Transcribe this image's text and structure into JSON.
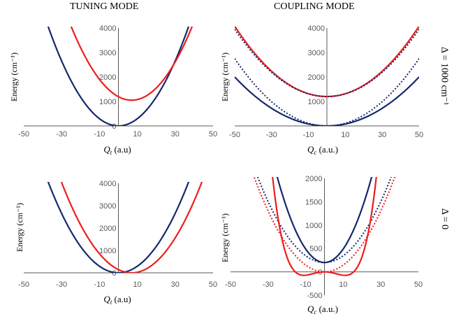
{
  "headers": {
    "tuning": "TUNING MODE",
    "coupling": "COUPLING MODE"
  },
  "side_labels": {
    "top": "Δ = 1000 cm⁻¹",
    "bottom": "Δ = 0"
  },
  "colors": {
    "navy": "#14286b",
    "red": "#f01c1c",
    "axis": "#595959"
  },
  "chart_data": [
    {
      "id": "tuning-top",
      "type": "line",
      "xlabel": "Qt (a.u)",
      "xlabel_var": "Q",
      "xlabel_sub": "t",
      "xlabel_unit": " (a.u)",
      "ylabel": "Energy (cm⁻¹)",
      "xlim": [
        -50,
        50
      ],
      "ylim": [
        0,
        4000
      ],
      "xticks": [
        -50,
        -30,
        -10,
        10,
        30,
        50
      ],
      "yticks": [
        0,
        1000,
        2000,
        3000,
        4000
      ],
      "ytick_labels": [
        "0",
        "1000",
        "2000",
        "3000",
        "4000"
      ],
      "series": [
        {
          "color": "navy",
          "style": "solid",
          "x0": 0,
          "y0": 0,
          "k": 2.95
        },
        {
          "color": "red",
          "style": "solid",
          "x0": 7,
          "y0": 1050,
          "k": 2.95
        }
      ]
    },
    {
      "id": "coupling-top",
      "type": "line",
      "xlabel": "Qc (a.u.)",
      "xlabel_var": "Q",
      "xlabel_sub": "c",
      "xlabel_unit": " (a.u.)",
      "ylabel": "Energy (cm⁻¹)",
      "xlim": [
        -50,
        50
      ],
      "ylim": [
        0,
        4000
      ],
      "xticks": [
        -50,
        -30,
        -10,
        10,
        30,
        50
      ],
      "yticks": [
        1000,
        2000,
        3000,
        4000
      ],
      "ytick_labels": [
        "1000",
        "2000",
        "3000",
        "4000"
      ],
      "series": [
        {
          "color": "red",
          "style": "solid",
          "x0": 0,
          "y0": 1200,
          "k": 1.15
        },
        {
          "color": "navy",
          "style": "solid",
          "x0": 0,
          "y0": 0,
          "k": 0.8
        },
        {
          "color": "navy",
          "style": "dotted",
          "x0": 0,
          "y0": 1200,
          "k": 1.1
        },
        {
          "color": "navy",
          "style": "dotted",
          "x0": 0,
          "y0": 0,
          "k": 1.1
        }
      ]
    },
    {
      "id": "tuning-bottom",
      "type": "line",
      "xlabel": "Qt (a.u)",
      "xlabel_var": "Q",
      "xlabel_sub": "t",
      "xlabel_unit": " (a.u)",
      "ylabel": "Energy (cm⁻¹)",
      "xlim": [
        -50,
        50
      ],
      "ylim": [
        0,
        4000
      ],
      "xticks": [
        -50,
        -30,
        -10,
        10,
        30,
        50
      ],
      "yticks": [
        0,
        1000,
        2000,
        3000,
        4000
      ],
      "ytick_labels": [
        "0",
        "1000",
        "2000",
        "3000",
        "4000"
      ],
      "series": [
        {
          "color": "navy",
          "style": "solid",
          "x0": 0,
          "y0": 0,
          "k": 2.95
        },
        {
          "color": "red",
          "style": "solid",
          "x0": 7,
          "y0": 0,
          "k": 2.95
        }
      ]
    },
    {
      "id": "coupling-bottom",
      "type": "line",
      "xlabel": "Qc (a.u.)",
      "xlabel_var": "Q",
      "xlabel_sub": "c",
      "xlabel_unit": " (a.u.)",
      "ylabel": "Energy (cm⁻¹)",
      "xlim": [
        -50,
        50
      ],
      "ylim": [
        -500,
        2000
      ],
      "xticks": [
        -50,
        -30,
        -10,
        10,
        30,
        50
      ],
      "yticks": [
        -500,
        0,
        500,
        1000,
        1500,
        2000
      ],
      "ytick_labels": [
        "-500",
        "0",
        "500",
        "1000",
        "1500",
        "2000"
      ],
      "series": [
        {
          "color": "navy",
          "style": "solid",
          "x0": 0,
          "y0": 200,
          "k": 2.9
        },
        {
          "color": "navy",
          "style": "dotted",
          "x0": 0,
          "y0": 200,
          "k": 1.45
        },
        {
          "color": "red",
          "style": "dotted",
          "x0": 0,
          "y0": 0,
          "k": 1.45
        },
        {
          "color": "red",
          "style": "solid",
          "x0": 0,
          "y0": 0,
          "k": 1.0,
          "double_well": {
            "min_at": 11,
            "depth": 75
          }
        }
      ]
    }
  ]
}
